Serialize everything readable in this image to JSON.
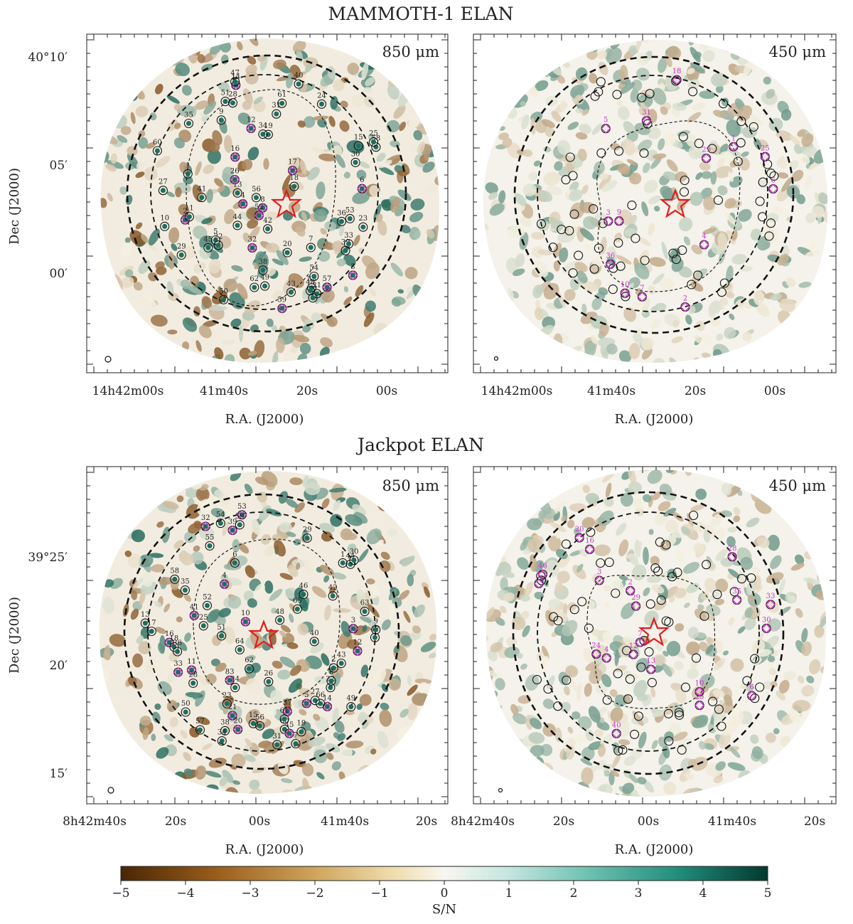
{
  "figure": {
    "sections": [
      {
        "title": "MAMMOTH-1 ELAN",
        "panels": [
          {
            "band": "850 μm",
            "ra_ticks": [
              "14h42m00s",
              "41m40s",
              "20s",
              "00s"
            ],
            "dec_ticks": [
              "40°10′",
              "05′",
              "00′"
            ],
            "xlabel": "R.A. (J2000)",
            "ylabel": "Dec (J2000)",
            "sources": [
              "5",
              "20",
              "21",
              "31",
              "13",
              "39",
              "4",
              "60",
              "22",
              "38",
              "19",
              "45",
              "8",
              "57",
              "28",
              "35",
              "27",
              "7",
              "37",
              "49",
              "58",
              "16",
              "43",
              "32",
              "34",
              "55",
              "29",
              "50",
              "24",
              "44",
              "52",
              "10",
              "33",
              "6",
              "53",
              "42",
              "26",
              "14",
              "30",
              "25",
              "12",
              "18",
              "40",
              "62",
              "17",
              "51",
              "2",
              "3",
              "47",
              "54",
              "56",
              "59",
              "9",
              "1",
              "11",
              "15",
              "36",
              "41",
              "23",
              "48",
              "61"
            ],
            "confirmed": [
              "4",
              "8",
              "57",
              "16",
              "32",
              "52",
              "26",
              "14",
              "17",
              "2",
              "12",
              "3",
              "59",
              "6"
            ]
          },
          {
            "band": "450 μm",
            "ra_ticks": [
              "14h42m00s",
              "41m40s",
              "20s",
              "00s"
            ],
            "dec_ticks": [],
            "xlabel": "R.A. (J2000)",
            "ylabel": "",
            "sources": [
              "4",
              "7",
              "9",
              "10",
              "6",
              "31",
              "5",
              "36",
              "18",
              "3",
              "25",
              "29",
              "2",
              "1"
            ],
            "confirmed": [
              "4",
              "7",
              "9",
              "10",
              "6",
              "31",
              "5",
              "36",
              "18",
              "3",
              "25",
              "29",
              "2",
              "1"
            ]
          }
        ]
      },
      {
        "title": "Jackpot ELAN",
        "panels": [
          {
            "band": "850 μm",
            "ra_ticks": [
              "8h42m40s",
              "20s",
              "00s",
              "41m40s",
              "20s"
            ],
            "dec_ticks": [
              "39°25′",
              "20′",
              "15′"
            ],
            "xlabel": "R.A. (J2000)",
            "ylabel": "Dec (J2000)",
            "sources": [
              "15",
              "17",
              "14",
              "13",
              "58",
              "47",
              "10",
              "83",
              "38",
              "6",
              "64",
              "9",
              "55",
              "60",
              "41",
              "11",
              "37",
              "39",
              "12",
              "45",
              "16",
              "56",
              "54",
              "33",
              "48",
              "22",
              "43",
              "28",
              "21",
              "53",
              "31",
              "63",
              "61",
              "23",
              "27",
              "29",
              "20",
              "4",
              "57",
              "44",
              "3",
              "19",
              "50",
              "5",
              "49",
              "51",
              "52",
              "25",
              "26",
              "18",
              "24",
              "65",
              "35",
              "34",
              "36",
              "2",
              "30",
              "40",
              "7",
              "59",
              "62",
              "1",
              "32",
              "42",
              "8",
              "46",
              "66"
            ],
            "confirmed": [
              "14",
              "10",
              "83",
              "37",
              "41",
              "11",
              "45",
              "16",
              "33",
              "53",
              "4",
              "5",
              "20",
              "3",
              "12",
              "39",
              "32",
              "21"
            ]
          },
          {
            "band": "450 μm",
            "ra_ticks": [
              "8h42m40s",
              "20s",
              "00s",
              "41m40s",
              "20s"
            ],
            "dec_ticks": [],
            "xlabel": "R.A. (J2000)",
            "ylabel": "",
            "sources": [
              "7",
              "40",
              "28",
              "3",
              "46",
              "1",
              "20",
              "12",
              "6",
              "35",
              "30",
              "25",
              "4",
              "24",
              "13",
              "33",
              "29",
              "2",
              "10",
              "16"
            ],
            "confirmed": [
              "7",
              "40",
              "28",
              "3",
              "46",
              "1",
              "20",
              "12",
              "6",
              "35",
              "30",
              "25",
              "4",
              "24",
              "13",
              "33",
              "29",
              "2",
              "10",
              "16"
            ]
          }
        ]
      }
    ],
    "colorbar": {
      "label": "S/N",
      "ticks": [
        "−5",
        "−4",
        "−3",
        "−2",
        "−1",
        "0",
        "1",
        "2",
        "3",
        "4",
        "5"
      ],
      "min": -5,
      "max": 5,
      "neg_color": "#6b3a0c",
      "mid_color": "#f6f2e2",
      "pos_color": "#0d4c40"
    },
    "colors": {
      "marker": "#d22fd2",
      "star": "#e31a1c",
      "circle": "#111111"
    }
  }
}
